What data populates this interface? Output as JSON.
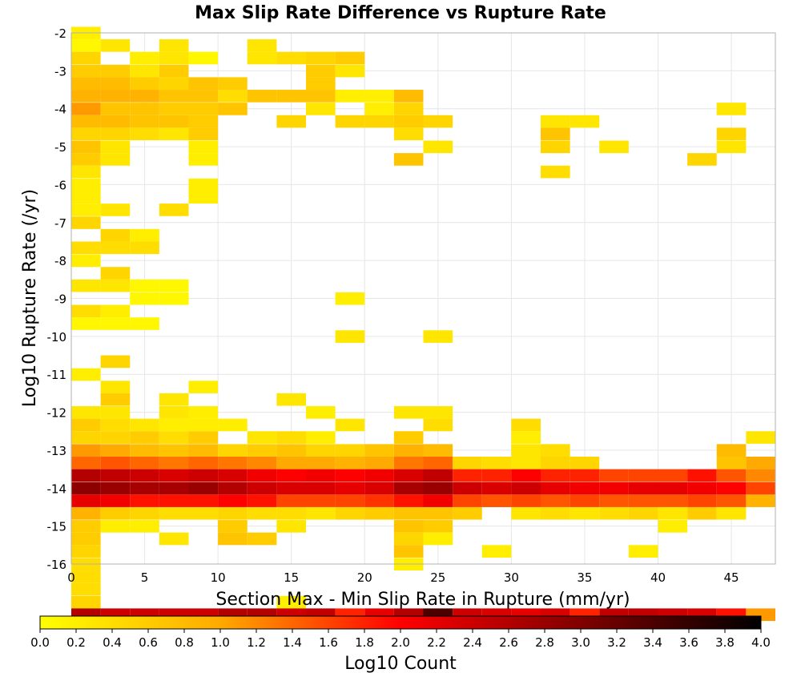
{
  "chart_data": {
    "type": "heatmap",
    "title": "Max Slip Rate Difference vs Rupture Rate",
    "xlabel": "Section Max - Min Slip Rate in Rupture (mm/yr)",
    "ylabel": "Log10 Rupture Rate (/yr)",
    "xlim": [
      0,
      48
    ],
    "ylim": [
      -16,
      -2
    ],
    "x_ticks": [
      0,
      5,
      10,
      15,
      20,
      25,
      30,
      35,
      40,
      45
    ],
    "y_ticks": [
      -16,
      -15,
      -14,
      -13,
      -12,
      -11,
      -10,
      -9,
      -8,
      -7,
      -6,
      -5,
      -4,
      -3,
      -2
    ],
    "bin_width_x": 2,
    "bin_height_y": 0.33,
    "grid": true,
    "colorbar": {
      "label": "Log10 Count",
      "range": [
        0.0,
        4.0
      ],
      "ticks": [
        "0.0",
        "0.2",
        "0.4",
        "0.6",
        "0.8",
        "1.0",
        "1.2",
        "1.4",
        "1.6",
        "1.8",
        "2.0",
        "2.2",
        "2.4",
        "2.6",
        "2.8",
        "3.0",
        "3.2",
        "3.4",
        "3.6",
        "3.8",
        "4.0"
      ],
      "colors": [
        "#ffff00",
        "#ffaa00",
        "#ff0000",
        "#800000",
        "#000000"
      ],
      "placement": "bottom"
    },
    "cells": [
      [
        0,
        -2.17,
        0.2
      ],
      [
        0,
        -2.5,
        0.1
      ],
      [
        2,
        -2.5,
        0.3
      ],
      [
        6,
        -2.5,
        0.3
      ],
      [
        12,
        -2.5,
        0.3
      ],
      [
        0,
        -2.83,
        0.5
      ],
      [
        4,
        -2.83,
        0.2
      ],
      [
        6,
        -2.83,
        0.3
      ],
      [
        8,
        -2.83,
        0.1
      ],
      [
        12,
        -2.83,
        0.3
      ],
      [
        14,
        -2.83,
        0.4
      ],
      [
        16,
        -2.83,
        0.5
      ],
      [
        18,
        -2.83,
        0.6
      ],
      [
        0,
        -3.17,
        0.6
      ],
      [
        2,
        -3.17,
        0.6
      ],
      [
        4,
        -3.17,
        0.3
      ],
      [
        6,
        -3.17,
        0.6
      ],
      [
        16,
        -3.17,
        0.6
      ],
      [
        18,
        -3.17,
        0.3
      ],
      [
        0,
        -3.5,
        0.8
      ],
      [
        2,
        -3.5,
        0.8
      ],
      [
        4,
        -3.5,
        0.6
      ],
      [
        6,
        -3.5,
        0.5
      ],
      [
        8,
        -3.5,
        0.7
      ],
      [
        10,
        -3.5,
        0.6
      ],
      [
        16,
        -3.5,
        0.6
      ],
      [
        0,
        -3.83,
        0.9
      ],
      [
        2,
        -3.83,
        0.9
      ],
      [
        4,
        -3.83,
        0.9
      ],
      [
        6,
        -3.83,
        0.7
      ],
      [
        8,
        -3.83,
        0.7
      ],
      [
        10,
        -3.83,
        0.4
      ],
      [
        12,
        -3.83,
        0.7
      ],
      [
        14,
        -3.83,
        0.7
      ],
      [
        16,
        -3.83,
        0.7
      ],
      [
        18,
        -3.83,
        0.2
      ],
      [
        20,
        -3.83,
        0.2
      ],
      [
        22,
        -3.83,
        0.8
      ],
      [
        0,
        -4.17,
        1.1
      ],
      [
        2,
        -4.17,
        0.7
      ],
      [
        4,
        -4.17,
        0.7
      ],
      [
        6,
        -4.17,
        0.6
      ],
      [
        8,
        -4.17,
        0.6
      ],
      [
        10,
        -4.17,
        0.7
      ],
      [
        16,
        -4.17,
        0.3
      ],
      [
        20,
        -4.17,
        0.2
      ],
      [
        22,
        -4.17,
        0.5
      ],
      [
        44,
        -4.17,
        0.3
      ],
      [
        0,
        -4.5,
        0.8
      ],
      [
        2,
        -4.5,
        0.8
      ],
      [
        4,
        -4.5,
        0.7
      ],
      [
        6,
        -4.5,
        0.7
      ],
      [
        8,
        -4.5,
        0.6
      ],
      [
        14,
        -4.5,
        0.5
      ],
      [
        18,
        -4.5,
        0.5
      ],
      [
        20,
        -4.5,
        0.5
      ],
      [
        22,
        -4.5,
        0.6
      ],
      [
        24,
        -4.5,
        0.5
      ],
      [
        32,
        -4.5,
        0.3
      ],
      [
        34,
        -4.5,
        0.3
      ],
      [
        0,
        -4.83,
        0.5
      ],
      [
        2,
        -4.83,
        0.5
      ],
      [
        4,
        -4.83,
        0.4
      ],
      [
        6,
        -4.83,
        0.3
      ],
      [
        8,
        -4.83,
        0.6
      ],
      [
        22,
        -4.83,
        0.4
      ],
      [
        32,
        -4.83,
        0.7
      ],
      [
        44,
        -4.83,
        0.5
      ],
      [
        0,
        -5.17,
        0.7
      ],
      [
        2,
        -5.17,
        0.3
      ],
      [
        8,
        -5.17,
        0.2
      ],
      [
        24,
        -5.17,
        0.3
      ],
      [
        32,
        -5.17,
        0.5
      ],
      [
        36,
        -5.17,
        0.3
      ],
      [
        44,
        -5.17,
        0.3
      ],
      [
        0,
        -5.5,
        0.6
      ],
      [
        2,
        -5.5,
        0.3
      ],
      [
        8,
        -5.5,
        0.2
      ],
      [
        22,
        -5.5,
        0.7
      ],
      [
        42,
        -5.5,
        0.5
      ],
      [
        0,
        -5.83,
        0.3
      ],
      [
        32,
        -5.83,
        0.4
      ],
      [
        0,
        -6.17,
        0.2
      ],
      [
        8,
        -6.17,
        0.2
      ],
      [
        0,
        -6.5,
        0.2
      ],
      [
        8,
        -6.5,
        0.2
      ],
      [
        0,
        -6.83,
        0.2
      ],
      [
        2,
        -6.83,
        0.3
      ],
      [
        6,
        -6.83,
        0.4
      ],
      [
        0,
        -7.17,
        0.5
      ],
      [
        2,
        -7.5,
        0.5
      ],
      [
        4,
        -7.5,
        0.2
      ],
      [
        0,
        -7.83,
        0.4
      ],
      [
        2,
        -7.83,
        0.4
      ],
      [
        4,
        -7.83,
        0.4
      ],
      [
        0,
        -8.17,
        0.2
      ],
      [
        2,
        -8.5,
        0.5
      ],
      [
        0,
        -8.83,
        0.3
      ],
      [
        2,
        -8.83,
        0.3
      ],
      [
        4,
        -8.83,
        0.1
      ],
      [
        6,
        -8.83,
        0.1
      ],
      [
        4,
        -9.17,
        0.1
      ],
      [
        6,
        -9.17,
        0.1
      ],
      [
        18,
        -9.17,
        0.2
      ],
      [
        0,
        -9.5,
        0.4
      ],
      [
        2,
        -9.5,
        0.2
      ],
      [
        0,
        -9.83,
        0.1
      ],
      [
        2,
        -9.83,
        0.1
      ],
      [
        4,
        -9.83,
        0.1
      ],
      [
        18,
        -10.17,
        0.3
      ],
      [
        24,
        -10.17,
        0.3
      ],
      [
        2,
        -10.83,
        0.5
      ],
      [
        0,
        -11.17,
        0.2
      ],
      [
        2,
        -11.5,
        0.3
      ],
      [
        8,
        -11.5,
        0.2
      ],
      [
        2,
        -11.83,
        0.6
      ],
      [
        6,
        -11.83,
        0.3
      ],
      [
        14,
        -11.83,
        0.3
      ],
      [
        0,
        -12.17,
        0.3
      ],
      [
        2,
        -12.17,
        0.3
      ],
      [
        6,
        -12.17,
        0.3
      ],
      [
        8,
        -12.17,
        0.2
      ],
      [
        16,
        -12.17,
        0.2
      ],
      [
        22,
        -12.17,
        0.3
      ],
      [
        24,
        -12.17,
        0.3
      ],
      [
        0,
        -12.5,
        0.6
      ],
      [
        2,
        -12.5,
        0.4
      ],
      [
        4,
        -12.5,
        0.3
      ],
      [
        6,
        -12.5,
        0.2
      ],
      [
        8,
        -12.5,
        0.2
      ],
      [
        10,
        -12.5,
        0.2
      ],
      [
        18,
        -12.5,
        0.3
      ],
      [
        24,
        -12.5,
        0.4
      ],
      [
        30,
        -12.5,
        0.4
      ],
      [
        0,
        -12.83,
        0.5
      ],
      [
        2,
        -12.83,
        0.5
      ],
      [
        4,
        -12.83,
        0.6
      ],
      [
        6,
        -12.83,
        0.4
      ],
      [
        8,
        -12.83,
        0.6
      ],
      [
        12,
        -12.83,
        0.3
      ],
      [
        14,
        -12.83,
        0.4
      ],
      [
        16,
        -12.83,
        0.2
      ],
      [
        22,
        -12.83,
        0.6
      ],
      [
        30,
        -12.83,
        0.2
      ],
      [
        46,
        -12.83,
        0.3
      ],
      [
        0,
        -13.17,
        1.1
      ],
      [
        2,
        -13.17,
        1.0
      ],
      [
        4,
        -13.17,
        0.8
      ],
      [
        6,
        -13.17,
        0.7
      ],
      [
        8,
        -13.17,
        0.8
      ],
      [
        10,
        -13.17,
        0.5
      ],
      [
        12,
        -13.17,
        0.6
      ],
      [
        14,
        -13.17,
        0.7
      ],
      [
        16,
        -13.17,
        0.5
      ],
      [
        18,
        -13.17,
        0.5
      ],
      [
        20,
        -13.17,
        0.7
      ],
      [
        22,
        -13.17,
        0.9
      ],
      [
        24,
        -13.17,
        0.8
      ],
      [
        30,
        -13.17,
        0.3
      ],
      [
        32,
        -13.17,
        0.4
      ],
      [
        44,
        -13.17,
        0.8
      ],
      [
        0,
        -13.5,
        1.4
      ],
      [
        2,
        -13.5,
        1.5
      ],
      [
        4,
        -13.5,
        1.4
      ],
      [
        6,
        -13.5,
        1.3
      ],
      [
        8,
        -13.5,
        1.4
      ],
      [
        10,
        -13.5,
        1.3
      ],
      [
        12,
        -13.5,
        1.2
      ],
      [
        14,
        -13.5,
        1.0
      ],
      [
        16,
        -13.5,
        1.0
      ],
      [
        18,
        -13.5,
        0.9
      ],
      [
        20,
        -13.5,
        1.0
      ],
      [
        22,
        -13.5,
        1.3
      ],
      [
        24,
        -13.5,
        1.4
      ],
      [
        26,
        -13.5,
        0.5
      ],
      [
        28,
        -13.5,
        0.4
      ],
      [
        30,
        -13.5,
        0.3
      ],
      [
        32,
        -13.5,
        0.5
      ],
      [
        34,
        -13.5,
        0.5
      ],
      [
        44,
        -13.5,
        0.7
      ],
      [
        46,
        -13.5,
        1.0
      ],
      [
        0,
        -13.83,
        2.6
      ],
      [
        2,
        -13.83,
        2.5
      ],
      [
        4,
        -13.83,
        2.4
      ],
      [
        6,
        -13.83,
        2.3
      ],
      [
        8,
        -13.83,
        2.4
      ],
      [
        10,
        -13.83,
        2.3
      ],
      [
        12,
        -13.83,
        2.1
      ],
      [
        14,
        -13.83,
        2.0
      ],
      [
        16,
        -13.83,
        2.1
      ],
      [
        18,
        -13.83,
        2.0
      ],
      [
        20,
        -13.83,
        2.1
      ],
      [
        22,
        -13.83,
        2.3
      ],
      [
        24,
        -13.83,
        2.5
      ],
      [
        26,
        -13.83,
        1.8
      ],
      [
        28,
        -13.83,
        1.8
      ],
      [
        30,
        -13.83,
        2.0
      ],
      [
        32,
        -13.83,
        1.8
      ],
      [
        34,
        -13.83,
        1.8
      ],
      [
        36,
        -13.83,
        1.6
      ],
      [
        38,
        -13.83,
        1.6
      ],
      [
        40,
        -13.83,
        1.6
      ],
      [
        42,
        -13.83,
        1.9
      ],
      [
        44,
        -13.83,
        1.5
      ],
      [
        46,
        -13.83,
        1.2
      ],
      [
        0,
        -14.17,
        2.9
      ],
      [
        2,
        -14.17,
        2.8
      ],
      [
        4,
        -14.17,
        2.7
      ],
      [
        6,
        -14.17,
        2.7
      ],
      [
        8,
        -14.17,
        2.8
      ],
      [
        10,
        -14.17,
        2.6
      ],
      [
        12,
        -14.17,
        2.4
      ],
      [
        14,
        -14.17,
        2.3
      ],
      [
        16,
        -14.17,
        2.3
      ],
      [
        18,
        -14.17,
        2.2
      ],
      [
        20,
        -14.17,
        2.3
      ],
      [
        22,
        -14.17,
        2.7
      ],
      [
        24,
        -14.17,
        2.8
      ],
      [
        26,
        -14.17,
        2.4
      ],
      [
        28,
        -14.17,
        2.3
      ],
      [
        30,
        -14.17,
        2.4
      ],
      [
        32,
        -14.17,
        2.2
      ],
      [
        34,
        -14.17,
        2.1
      ],
      [
        36,
        -14.17,
        2.1
      ],
      [
        38,
        -14.17,
        2.2
      ],
      [
        40,
        -14.17,
        2.2
      ],
      [
        42,
        -14.17,
        2.1
      ],
      [
        44,
        -14.17,
        2.0
      ],
      [
        46,
        -14.17,
        1.6
      ],
      [
        0,
        -14.5,
        2.2
      ],
      [
        2,
        -14.5,
        2.1
      ],
      [
        4,
        -14.5,
        1.9
      ],
      [
        6,
        -14.5,
        1.9
      ],
      [
        8,
        -14.5,
        1.9
      ],
      [
        10,
        -14.5,
        2.0
      ],
      [
        12,
        -14.5,
        1.9
      ],
      [
        14,
        -14.5,
        1.6
      ],
      [
        16,
        -14.5,
        1.6
      ],
      [
        18,
        -14.5,
        1.6
      ],
      [
        20,
        -14.5,
        1.7
      ],
      [
        22,
        -14.5,
        1.9
      ],
      [
        24,
        -14.5,
        2.1
      ],
      [
        26,
        -14.5,
        1.6
      ],
      [
        28,
        -14.5,
        1.5
      ],
      [
        30,
        -14.5,
        1.6
      ],
      [
        32,
        -14.5,
        1.5
      ],
      [
        34,
        -14.5,
        1.6
      ],
      [
        36,
        -14.5,
        1.5
      ],
      [
        38,
        -14.5,
        1.5
      ],
      [
        40,
        -14.5,
        1.5
      ],
      [
        42,
        -14.5,
        1.6
      ],
      [
        44,
        -14.5,
        1.5
      ],
      [
        46,
        -14.5,
        0.9
      ],
      [
        0,
        -14.83,
        0.9
      ],
      [
        2,
        -14.83,
        0.6
      ],
      [
        4,
        -14.83,
        0.5
      ],
      [
        6,
        -14.83,
        0.4
      ],
      [
        8,
        -14.83,
        0.4
      ],
      [
        10,
        -14.83,
        0.5
      ],
      [
        12,
        -14.83,
        0.4
      ],
      [
        14,
        -14.83,
        0.4
      ],
      [
        16,
        -14.83,
        0.3
      ],
      [
        18,
        -14.83,
        0.5
      ],
      [
        20,
        -14.83,
        0.6
      ],
      [
        22,
        -14.83,
        0.7
      ],
      [
        24,
        -14.83,
        0.7
      ],
      [
        26,
        -14.83,
        0.6
      ],
      [
        30,
        -14.83,
        0.3
      ],
      [
        32,
        -14.83,
        0.4
      ],
      [
        34,
        -14.83,
        0.3
      ],
      [
        36,
        -14.83,
        0.4
      ],
      [
        38,
        -14.83,
        0.5
      ],
      [
        40,
        -14.83,
        0.3
      ],
      [
        42,
        -14.83,
        0.6
      ],
      [
        44,
        -14.83,
        0.3
      ],
      [
        0,
        -15.17,
        0.6
      ],
      [
        2,
        -15.17,
        0.2
      ],
      [
        4,
        -15.17,
        0.2
      ],
      [
        10,
        -15.17,
        0.6
      ],
      [
        14,
        -15.17,
        0.3
      ],
      [
        22,
        -15.17,
        0.7
      ],
      [
        24,
        -15.17,
        0.6
      ],
      [
        40,
        -15.17,
        0.2
      ],
      [
        0,
        -15.5,
        0.6
      ],
      [
        6,
        -15.5,
        0.3
      ],
      [
        10,
        -15.5,
        0.7
      ],
      [
        12,
        -15.5,
        0.6
      ],
      [
        22,
        -15.5,
        0.5
      ],
      [
        24,
        -15.5,
        0.2
      ],
      [
        0,
        -15.83,
        0.5
      ],
      [
        22,
        -15.83,
        0.7
      ],
      [
        28,
        -15.83,
        0.2
      ],
      [
        38,
        -15.83,
        0.2
      ],
      [
        0,
        -16.17,
        0.4
      ],
      [
        22,
        -16.17,
        0.2
      ],
      [
        0,
        -16.5,
        0.4
      ],
      [
        0,
        -16.83,
        0.4
      ],
      [
        0,
        -17.17,
        0.5
      ],
      [
        14,
        -17.17,
        0.2
      ],
      [
        0,
        -17.5,
        2.6
      ],
      [
        2,
        -17.5,
        2.4
      ],
      [
        4,
        -17.5,
        2.4
      ],
      [
        6,
        -17.5,
        2.4
      ],
      [
        8,
        -17.5,
        2.4
      ],
      [
        10,
        -17.5,
        2.6
      ],
      [
        12,
        -17.5,
        2.6
      ],
      [
        14,
        -17.5,
        2.4
      ],
      [
        16,
        -17.5,
        2.5
      ],
      [
        18,
        -17.5,
        1.8
      ],
      [
        20,
        -17.5,
        2.2
      ],
      [
        22,
        -17.5,
        2.6
      ],
      [
        24,
        -17.5,
        3.4
      ],
      [
        26,
        -17.5,
        2.4
      ],
      [
        28,
        -17.5,
        2.3
      ],
      [
        30,
        -17.5,
        2.2
      ],
      [
        32,
        -17.5,
        2.3
      ],
      [
        34,
        -17.5,
        1.8
      ],
      [
        36,
        -17.5,
        2.5
      ],
      [
        38,
        -17.5,
        2.5
      ],
      [
        40,
        -17.5,
        2.4
      ],
      [
        42,
        -17.5,
        2.3
      ],
      [
        44,
        -17.5,
        1.9
      ],
      [
        46,
        -17.5,
        1.1
      ]
    ]
  }
}
